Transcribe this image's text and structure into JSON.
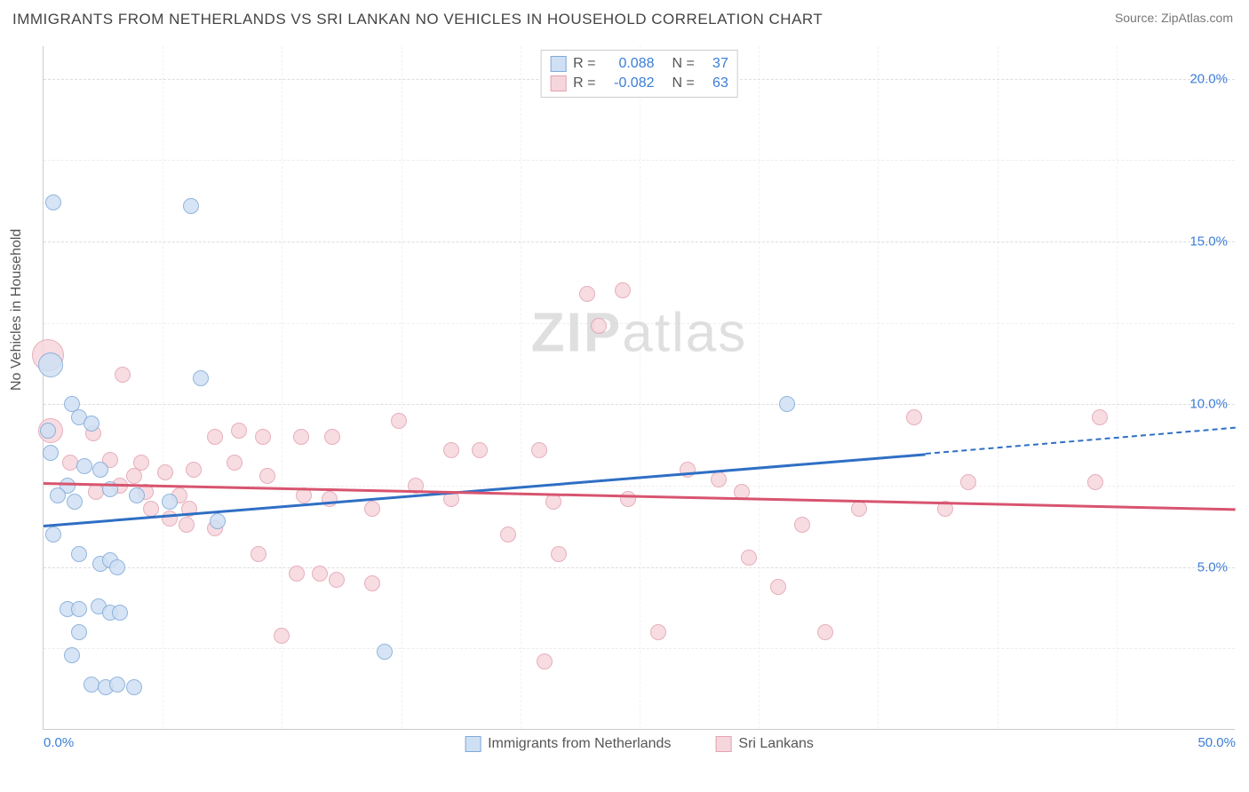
{
  "title": "IMMIGRANTS FROM NETHERLANDS VS SRI LANKAN NO VEHICLES IN HOUSEHOLD CORRELATION CHART",
  "source": "Source: ZipAtlas.com",
  "watermark_bold": "ZIP",
  "watermark_rest": "atlas",
  "chart": {
    "type": "scatter",
    "y_axis_title": "No Vehicles in Household",
    "xlim": [
      0,
      50
    ],
    "ylim": [
      0,
      21
    ],
    "x_ticks": [
      0,
      50
    ],
    "x_tick_labels": [
      "0.0%",
      "50.0%"
    ],
    "x_minor_ticks": [
      5,
      10,
      15,
      20,
      25,
      30,
      35,
      40,
      45
    ],
    "y_ticks": [
      5,
      10,
      15,
      20
    ],
    "y_tick_labels": [
      "5.0%",
      "10.0%",
      "15.0%",
      "20.0%"
    ],
    "y_minor_ticks": [
      17.5,
      12.5,
      7.5,
      2.5
    ],
    "grid_color": "#dddddd",
    "background_color": "#ffffff",
    "series": [
      {
        "name": "Immigrants from Netherlands",
        "fill": "#cfe0f4",
        "stroke": "#7fa9d8",
        "trend_color": "#2f6fc4",
        "R": "0.088",
        "N": "37",
        "trend": {
          "x1": 0,
          "y1": 6.3,
          "x2": 37,
          "y2": 8.5,
          "x_extra": 50,
          "y_extra": 9.3
        },
        "point_radius": 9,
        "points": [
          [
            0.4,
            16.2
          ],
          [
            6.2,
            16.1
          ],
          [
            0.3,
            11.2,
            14
          ],
          [
            1.2,
            10.0
          ],
          [
            6.6,
            10.8
          ],
          [
            1.5,
            9.6
          ],
          [
            0.2,
            9.2
          ],
          [
            2.0,
            9.4
          ],
          [
            0.3,
            8.5
          ],
          [
            1.7,
            8.1
          ],
          [
            2.4,
            8.0
          ],
          [
            1.0,
            7.5
          ],
          [
            0.6,
            7.2
          ],
          [
            1.3,
            7.0
          ],
          [
            2.8,
            7.4
          ],
          [
            3.9,
            7.2
          ],
          [
            5.3,
            7.0
          ],
          [
            7.3,
            6.4
          ],
          [
            0.4,
            6.0
          ],
          [
            1.5,
            5.4
          ],
          [
            2.4,
            5.1
          ],
          [
            2.8,
            5.2
          ],
          [
            3.1,
            5.0
          ],
          [
            1.0,
            3.7
          ],
          [
            1.5,
            3.7
          ],
          [
            2.3,
            3.8
          ],
          [
            2.8,
            3.6
          ],
          [
            3.2,
            3.6
          ],
          [
            1.5,
            3.0
          ],
          [
            1.2,
            2.3
          ],
          [
            2.0,
            1.4
          ],
          [
            2.6,
            1.3
          ],
          [
            3.1,
            1.4
          ],
          [
            3.8,
            1.3
          ],
          [
            14.3,
            2.4
          ],
          [
            31.2,
            10.0
          ]
        ]
      },
      {
        "name": "Sri Lankans",
        "fill": "#f6d6dd",
        "stroke": "#e3a2b1",
        "trend_color": "#d8546f",
        "R": "-0.082",
        "N": "63",
        "trend": {
          "x1": 0,
          "y1": 7.6,
          "x2": 50,
          "y2": 6.8
        },
        "point_radius": 9,
        "points": [
          [
            0.2,
            11.5,
            18
          ],
          [
            0.3,
            9.2,
            14
          ],
          [
            3.3,
            10.9
          ],
          [
            2.1,
            9.1
          ],
          [
            1.1,
            8.2
          ],
          [
            2.8,
            8.3
          ],
          [
            4.1,
            8.2
          ],
          [
            5.1,
            7.9
          ],
          [
            3.2,
            7.5
          ],
          [
            4.3,
            7.3
          ],
          [
            5.7,
            7.2
          ],
          [
            6.3,
            8.0
          ],
          [
            7.2,
            9.0
          ],
          [
            8.2,
            9.2
          ],
          [
            9.2,
            9.0
          ],
          [
            10.8,
            9.0
          ],
          [
            12.1,
            9.0
          ],
          [
            8.0,
            8.2
          ],
          [
            9.4,
            7.8
          ],
          [
            10.9,
            7.2
          ],
          [
            6.1,
            6.8
          ],
          [
            5.3,
            6.5
          ],
          [
            7.2,
            6.2
          ],
          [
            9.0,
            5.4
          ],
          [
            10.6,
            4.8
          ],
          [
            12.3,
            4.6
          ],
          [
            13.8,
            4.5
          ],
          [
            12.0,
            7.1
          ],
          [
            13.8,
            6.8
          ],
          [
            14.9,
            9.5
          ],
          [
            15.6,
            7.5
          ],
          [
            17.1,
            7.1
          ],
          [
            18.3,
            8.6
          ],
          [
            19.5,
            6.0
          ],
          [
            20.8,
            8.6
          ],
          [
            21.4,
            7.0
          ],
          [
            22.8,
            13.4
          ],
          [
            24.3,
            13.5
          ],
          [
            23.3,
            12.4
          ],
          [
            21.0,
            2.1
          ],
          [
            24.5,
            7.1
          ],
          [
            25.8,
            3.0
          ],
          [
            27.0,
            8.0
          ],
          [
            28.3,
            7.7
          ],
          [
            29.6,
            5.3
          ],
          [
            30.8,
            4.4
          ],
          [
            31.8,
            6.3
          ],
          [
            32.8,
            3.0
          ],
          [
            34.2,
            6.8
          ],
          [
            36.5,
            9.6
          ],
          [
            37.8,
            6.8
          ],
          [
            38.8,
            7.6
          ],
          [
            44.3,
            9.6
          ],
          [
            44.1,
            7.6
          ],
          [
            10.0,
            2.9
          ],
          [
            4.5,
            6.8
          ],
          [
            6.0,
            6.3
          ],
          [
            2.2,
            7.3
          ],
          [
            29.3,
            7.3
          ],
          [
            21.6,
            5.4
          ],
          [
            17.1,
            8.6
          ],
          [
            11.6,
            4.8
          ],
          [
            3.8,
            7.8
          ]
        ]
      }
    ],
    "bottom_legend": [
      {
        "label": "Immigrants from Netherlands",
        "fill": "#cfe0f4",
        "stroke": "#7fa9d8"
      },
      {
        "label": "Sri Lankans",
        "fill": "#f6d6dd",
        "stroke": "#e3a2b1"
      }
    ]
  }
}
